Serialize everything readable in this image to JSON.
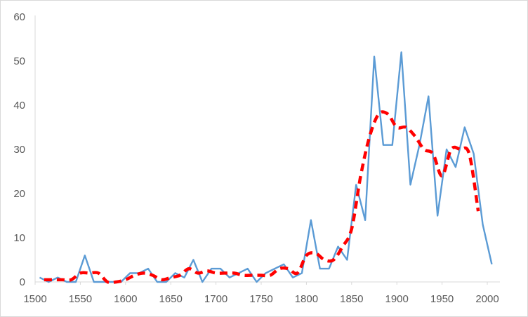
{
  "chart_data": {
    "type": "line",
    "title": "",
    "xlabel": "",
    "ylabel": "",
    "xlim": [
      1500,
      2000
    ],
    "ylim": [
      0,
      60
    ],
    "x_ticks": [
      1500,
      1550,
      1600,
      1650,
      1700,
      1750,
      1800,
      1850,
      1900,
      1950,
      2000
    ],
    "y_ticks": [
      0,
      10,
      20,
      30,
      40,
      50,
      60
    ],
    "grid": false,
    "legend": "none",
    "series": [
      {
        "style": "solid",
        "color": "#5b9bd5",
        "x": [
          1505,
          1515,
          1525,
          1535,
          1545,
          1555,
          1565,
          1575,
          1585,
          1595,
          1605,
          1615,
          1625,
          1635,
          1645,
          1655,
          1665,
          1675,
          1685,
          1695,
          1705,
          1715,
          1725,
          1735,
          1745,
          1755,
          1765,
          1775,
          1785,
          1795,
          1805,
          1815,
          1825,
          1835,
          1845,
          1855,
          1865,
          1875,
          1885,
          1895,
          1905,
          1915,
          1925,
          1935,
          1945,
          1955,
          1965,
          1975,
          1985,
          1995,
          2005
        ],
        "y": [
          1,
          0,
          1,
          0,
          0,
          6,
          0,
          0,
          0,
          0,
          2,
          2,
          3,
          0,
          0,
          2,
          1,
          5,
          0,
          3,
          3,
          1,
          2,
          3,
          0,
          2,
          3,
          4,
          1,
          2,
          14,
          3,
          3,
          8,
          5,
          22,
          14,
          51,
          31,
          31,
          52,
          22,
          31,
          42,
          15,
          30,
          26,
          35,
          29,
          13,
          4
        ]
      },
      {
        "style": "dashed",
        "color": "#ff0000",
        "x": [
          1510,
          1520,
          1530,
          1540,
          1550,
          1560,
          1570,
          1580,
          1590,
          1600,
          1610,
          1620,
          1630,
          1640,
          1650,
          1660,
          1670,
          1680,
          1690,
          1700,
          1710,
          1720,
          1730,
          1740,
          1750,
          1760,
          1770,
          1780,
          1790,
          1800,
          1810,
          1820,
          1830,
          1840,
          1850,
          1860,
          1870,
          1880,
          1890,
          1900,
          1910,
          1920,
          1930,
          1940,
          1950,
          1960,
          1970,
          1980,
          1990
        ],
        "y": [
          0.5,
          0.5,
          0.5,
          0.5,
          2,
          2,
          2,
          0,
          0,
          0.5,
          1.5,
          2,
          1.5,
          0.5,
          1,
          1.5,
          3,
          2,
          2.5,
          2,
          2,
          2,
          1.5,
          1.5,
          1.5,
          1.5,
          3,
          3,
          2,
          6,
          6.5,
          5,
          5,
          8,
          12,
          24,
          33,
          38,
          38,
          35,
          35,
          33,
          30,
          29,
          24,
          30,
          30,
          29,
          16
        ]
      }
    ]
  }
}
